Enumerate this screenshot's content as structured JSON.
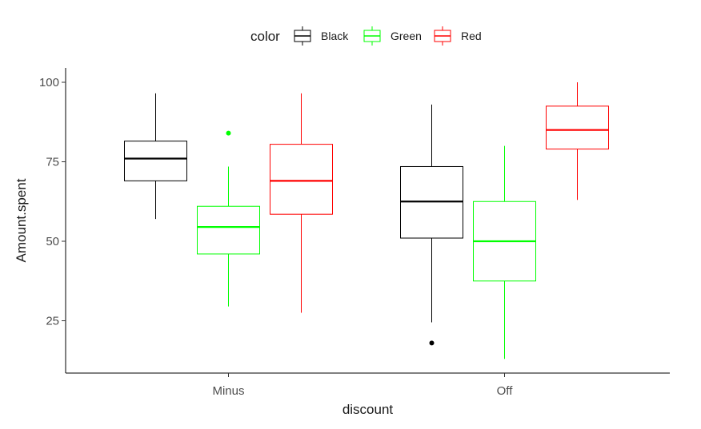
{
  "chart_data": {
    "type": "boxplot",
    "xlabel": "discount",
    "ylabel": "Amount.spent",
    "categories": [
      "Minus",
      "Off"
    ],
    "ylim": [
      8,
      105
    ],
    "yticks": [
      25,
      50,
      75,
      100
    ],
    "grid": false,
    "legend": {
      "title": "color",
      "position": "top",
      "entries": [
        "Black",
        "Green",
        "Red"
      ]
    },
    "series": [
      {
        "name": "Black",
        "color": "#000000",
        "boxes": [
          {
            "category": "Minus",
            "whisker_low": 57,
            "q1": 69,
            "median": 76,
            "q3": 81.5,
            "whisker_high": 96.5,
            "outliers": []
          },
          {
            "category": "Off",
            "whisker_low": 24.5,
            "q1": 51,
            "median": 62.5,
            "q3": 73.5,
            "whisker_high": 93,
            "outliers": [
              18
            ]
          }
        ]
      },
      {
        "name": "Green",
        "color": "#00ff00",
        "boxes": [
          {
            "category": "Minus",
            "whisker_low": 29.5,
            "q1": 46,
            "median": 54.5,
            "q3": 61,
            "whisker_high": 73.5,
            "outliers": [
              84
            ]
          },
          {
            "category": "Off",
            "whisker_low": 13,
            "q1": 37.5,
            "median": 50,
            "q3": 62.5,
            "whisker_high": 80,
            "outliers": []
          }
        ]
      },
      {
        "name": "Red",
        "color": "#ff0000",
        "boxes": [
          {
            "category": "Minus",
            "whisker_low": 27.5,
            "q1": 58.5,
            "median": 69,
            "q3": 80.5,
            "whisker_high": 96.5,
            "outliers": []
          },
          {
            "category": "Off",
            "whisker_low": 63,
            "q1": 79,
            "median": 85,
            "q3": 92.5,
            "whisker_high": 100,
            "outliers": []
          }
        ]
      }
    ]
  }
}
